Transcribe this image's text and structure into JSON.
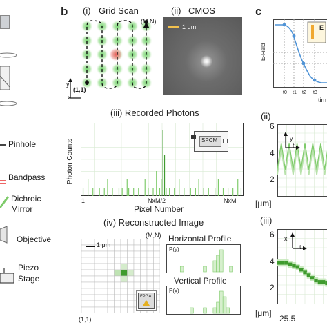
{
  "panel_a": {
    "labels": [
      "Pinhole",
      "Bandpass",
      "Dichroic",
      "Mirror",
      "Objective",
      "Piezo",
      "Stage"
    ]
  },
  "panel_b": {
    "letter": "b",
    "grid_scan": {
      "title_num": "(i)",
      "title": "Grid Scan",
      "corner_end": "(M,N)",
      "corner_start": "(1,1)",
      "axis_y": "y",
      "axis_x": "x"
    },
    "cmos": {
      "title_num": "(ii)",
      "title": "CMOS",
      "scalebar": "1 μm"
    },
    "recorded": {
      "title": "(iii) Recorded Photons",
      "ylabel": "Photon Counts",
      "xlabel": "Pixel Number",
      "ticks": [
        "1",
        "NxM/2",
        "NxM"
      ],
      "detector": "SPCM"
    },
    "reconstructed": {
      "title": "(iv) Reconstructed Image",
      "scalebar": "1 μm",
      "corner_end": "(M,N)",
      "corner_start": "(1,1)",
      "horizontal_title": "Horizontal Profile",
      "horizontal_axis": "P(y)",
      "vertical_title": "Vertical Profile",
      "vertical_axis": "P(x)",
      "fpga": "FPGA"
    }
  },
  "panel_c": {
    "letter": "c",
    "top": {
      "ylabel": "E-Field",
      "xlabel": "tim",
      "legend": "E",
      "ticks": [
        "t0",
        "t1",
        "t2",
        "t3"
      ]
    },
    "mid": {
      "num": "(ii)",
      "yticks": [
        "6",
        "4",
        "2"
      ],
      "unit": "[μm]",
      "axis_y": "y",
      "axis_t": "t"
    },
    "bot": {
      "num": "(iii)",
      "yticks": [
        "6",
        "4",
        "2"
      ],
      "unit": "[μm]",
      "xtick": "25.5",
      "axis_x": "x",
      "axis_t": "t"
    }
  },
  "colors": {
    "green": "#7ecb6a",
    "green_dark": "#3f9b2e",
    "blue": "#4f93d6",
    "orange": "#f0a830",
    "red": "#e8606a"
  },
  "chart_data": [
    {
      "type": "bar",
      "title": "(iii) Recorded Photons",
      "xlabel": "Pixel Number",
      "ylabel": "Photon Counts",
      "x_ticks": [
        "1",
        "NxM/2",
        "NxM"
      ],
      "values": [
        0,
        1,
        0,
        0,
        2,
        0,
        0,
        1,
        0,
        0,
        0,
        1,
        0,
        0,
        1,
        0,
        2,
        0,
        0,
        1,
        0,
        0,
        0,
        1,
        0,
        1,
        0,
        0,
        2,
        1,
        0,
        0,
        1,
        0,
        0,
        1,
        0,
        0,
        0,
        2,
        0,
        1,
        0,
        0,
        1,
        0,
        3,
        0,
        1,
        2,
        8,
        5,
        1,
        0,
        1,
        0,
        0,
        1,
        0,
        0,
        2,
        0,
        0,
        1,
        0,
        0,
        0,
        1,
        0,
        0,
        1,
        0,
        2,
        0,
        0,
        1,
        0,
        0,
        1,
        0,
        0,
        0,
        1,
        0,
        2,
        0,
        0,
        1,
        0,
        0,
        1,
        0,
        0,
        1,
        0,
        0,
        2,
        0,
        1,
        0
      ]
    },
    {
      "type": "line",
      "title": "(ii)",
      "ylabel": "[μm]",
      "y_ticks": [
        2,
        4,
        6
      ],
      "ylim": [
        1,
        6.5
      ],
      "series": [
        {
          "values": [
            3.0,
            5.0,
            3.0,
            5.0,
            3.0,
            5.0,
            3.0,
            5.0,
            3.0,
            5.0,
            3.0,
            5.0,
            3.0,
            5.0,
            3.0
          ]
        },
        {
          "values": [
            2.6,
            4.6,
            2.6,
            4.6,
            2.6,
            4.6,
            2.6,
            4.6,
            2.6,
            4.6,
            2.6,
            4.6,
            2.6,
            4.6,
            2.6
          ]
        }
      ]
    },
    {
      "type": "heatmap",
      "title": "(iii)",
      "ylabel": "[μm]",
      "y_ticks": [
        2,
        4,
        6
      ],
      "ylim": [
        1,
        6.5
      ],
      "x_ticks": [
        "25.5"
      ],
      "trace": [
        4.0,
        4.0,
        4.0,
        3.9,
        3.8,
        3.7,
        3.5,
        3.3,
        3.1,
        2.9,
        2.7,
        2.6,
        2.6,
        2.5,
        2.5
      ]
    }
  ]
}
